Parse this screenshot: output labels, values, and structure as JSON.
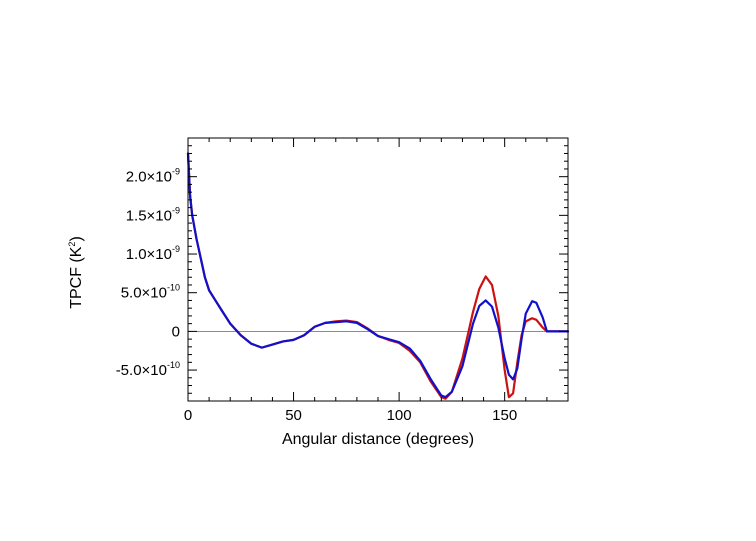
{
  "chart_data": {
    "type": "line",
    "xlabel": "Angular distance (degrees)",
    "ylabel_main": "TPCF (K",
    "ylabel_sup": "2",
    "ylabel_close": ")",
    "xlim": [
      0,
      180
    ],
    "ylim": [
      -9e-10,
      2.5e-09
    ],
    "x_ticks": [
      {
        "value": 0,
        "label": "0"
      },
      {
        "value": 50,
        "label": "50"
      },
      {
        "value": 100,
        "label": "100"
      },
      {
        "value": 150,
        "label": "150"
      }
    ],
    "y_ticks": [
      {
        "value": -5e-10,
        "mant": "-5.0×10",
        "exp": "-10"
      },
      {
        "value": 0,
        "mant": "0",
        "exp": ""
      },
      {
        "value": 5e-10,
        "mant": "5.0×10",
        "exp": "-10"
      },
      {
        "value": 1e-09,
        "mant": "1.0×10",
        "exp": "-9"
      },
      {
        "value": 1.5e-09,
        "mant": "1.5×10",
        "exp": "-9"
      },
      {
        "value": 2e-09,
        "mant": "2.0×10",
        "exp": "-9"
      }
    ],
    "zero_line": true,
    "series": [
      {
        "color": "#cc1111",
        "x": [
          0,
          1,
          2,
          4,
          6,
          8,
          10,
          13,
          16,
          20,
          25,
          30,
          35,
          40,
          45,
          50,
          55,
          60,
          65,
          70,
          75,
          80,
          85,
          90,
          95,
          100,
          105,
          110,
          115,
          120,
          122,
          125,
          130,
          135,
          138,
          141,
          144,
          147,
          150,
          152,
          154,
          156,
          158,
          160,
          163,
          165,
          168,
          170,
          175,
          180
        ],
        "y": [
          2.3e-09,
          1.75e-09,
          1.5e-09,
          1.2e-09,
          9.5e-10,
          7e-10,
          5.3e-10,
          4e-10,
          2.7e-10,
          1e-10,
          -5e-11,
          -1.6e-10,
          -2.1e-10,
          -1.7e-10,
          -1.3e-10,
          -1.1e-10,
          -5e-11,
          6e-11,
          1.1e-10,
          1.3e-10,
          1.4e-10,
          1.2e-10,
          4e-11,
          -6e-11,
          -1.1e-10,
          -1.5e-10,
          -2.5e-10,
          -4e-10,
          -6.5e-10,
          -8.5e-10,
          -8.7e-10,
          -7.8e-10,
          -3.5e-10,
          2.5e-10,
          5.5e-10,
          7.1e-10,
          6e-10,
          2e-10,
          -5e-10,
          -8.5e-10,
          -8e-10,
          -4e-10,
          -5e-11,
          1.3e-10,
          1.7e-10,
          1.5e-10,
          5e-11,
          0,
          0,
          0
        ]
      },
      {
        "color": "#1111cc",
        "x": [
          0,
          1,
          2,
          4,
          6,
          8,
          10,
          13,
          16,
          20,
          25,
          30,
          35,
          40,
          45,
          50,
          55,
          60,
          65,
          70,
          75,
          80,
          85,
          90,
          95,
          100,
          105,
          110,
          115,
          120,
          122,
          125,
          130,
          135,
          138,
          141,
          144,
          147,
          150,
          152,
          154,
          156,
          158,
          160,
          163,
          165,
          168,
          170,
          175,
          180
        ],
        "y": [
          2.3e-09,
          1.75e-09,
          1.5e-09,
          1.2e-09,
          9.5e-10,
          7e-10,
          5.3e-10,
          4e-10,
          2.7e-10,
          1e-10,
          -5e-11,
          -1.6e-10,
          -2.1e-10,
          -1.7e-10,
          -1.3e-10,
          -1.1e-10,
          -5e-11,
          6e-11,
          1.1e-10,
          1.2e-10,
          1.3e-10,
          1.1e-10,
          3e-11,
          -6e-11,
          -1e-10,
          -1.4e-10,
          -2.2e-10,
          -3.8e-10,
          -6.2e-10,
          -8.3e-10,
          -8.5e-10,
          -7.8e-10,
          -4.5e-10,
          1e-10,
          3.3e-10,
          4e-10,
          3.2e-10,
          5e-11,
          -3.5e-10,
          -5.6e-10,
          -6.2e-10,
          -4.8e-10,
          -1e-10,
          2.3e-10,
          3.9e-10,
          3.7e-10,
          1.8e-10,
          0,
          0,
          0
        ]
      }
    ]
  }
}
